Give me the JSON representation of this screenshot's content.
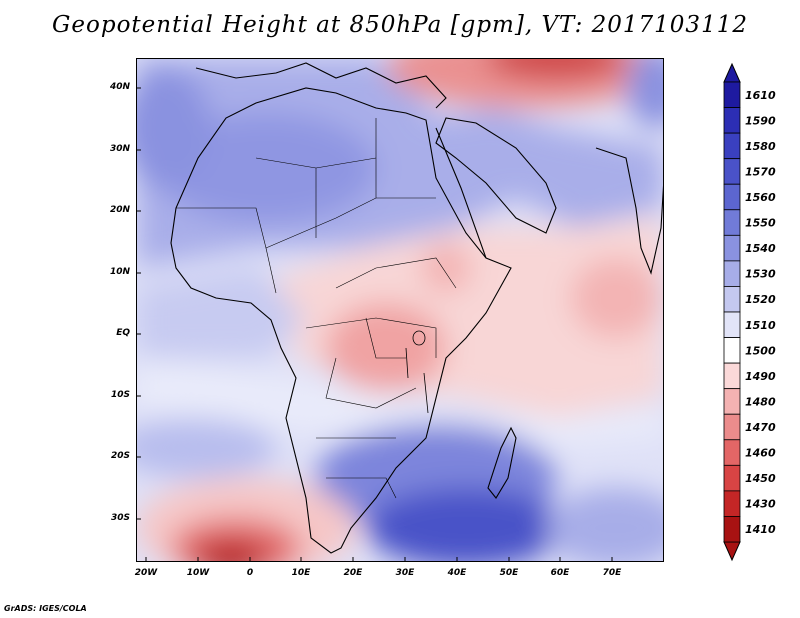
{
  "title": "Geopotential Height at 850hPa [gpm], VT: 2017103112",
  "credit": "GrADS: IGES/COLA",
  "map": {
    "lon_range": [
      -22,
      80
    ],
    "lat_range": [
      -37,
      45
    ],
    "lat_labels": [
      "40N",
      "30N",
      "20N",
      "10N",
      "EQ",
      "10S",
      "20S",
      "30S"
    ],
    "lon_labels": [
      "20W",
      "10W",
      "0",
      "10E",
      "20E",
      "30E",
      "40E",
      "50E",
      "60E",
      "70E"
    ]
  },
  "colorbar": {
    "levels": [
      "1610",
      "1590",
      "1580",
      "1570",
      "1560",
      "1550",
      "1540",
      "1530",
      "1520",
      "1510",
      "1500",
      "1490",
      "1480",
      "1470",
      "1460",
      "1450",
      "1430",
      "1410"
    ],
    "colors": [
      "#1e1aa0",
      "#2c2eb4",
      "#3a40c0",
      "#4a52c8",
      "#5c66d0",
      "#717bd8",
      "#8a92e0",
      "#a7ade8",
      "#c4c8f0",
      "#e2e4f8",
      "#ffffff",
      "#fbd9d9",
      "#f4b2b2",
      "#ec8c8c",
      "#e36666",
      "#d84444",
      "#c42626",
      "#a81212"
    ]
  }
}
